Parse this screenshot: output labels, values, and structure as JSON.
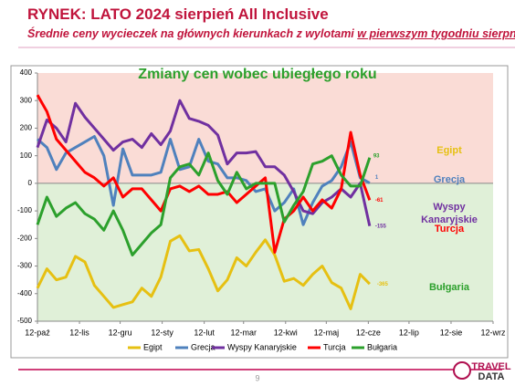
{
  "header": {
    "title": "RYNEK: LATO 2024 sierpień All Inclusive",
    "subtitle_main": "Średnie ceny wycieczek na głównych kierunkach z wylotami ",
    "subtitle_underlined": "w pierwszym tygodniu sierpnia"
  },
  "chart_data": {
    "type": "line",
    "title": "Zmiany cen wobec ubiegłego roku",
    "x": [
      0,
      7,
      14,
      21,
      28,
      35,
      42,
      49,
      56,
      63,
      70,
      77,
      84,
      91,
      98,
      105,
      112,
      119,
      126,
      133,
      140,
      147,
      154,
      161,
      168,
      175,
      182,
      189,
      196,
      203,
      210,
      217,
      224,
      231,
      238,
      245
    ],
    "xlim": [
      0,
      336
    ],
    "xticks": [
      {
        "value": 0,
        "label": "12-paź"
      },
      {
        "value": 31,
        "label": "12-lis"
      },
      {
        "value": 61,
        "label": "12-gru"
      },
      {
        "value": 92,
        "label": "12-sty"
      },
      {
        "value": 123,
        "label": "12-lut"
      },
      {
        "value": 152,
        "label": "12-mar"
      },
      {
        "value": 183,
        "label": "12-kwi"
      },
      {
        "value": 213,
        "label": "12-maj"
      },
      {
        "value": 244,
        "label": "12-cze"
      },
      {
        "value": 274,
        "label": "12-lip"
      },
      {
        "value": 305,
        "label": "12-sie"
      },
      {
        "value": 336,
        "label": "12-wrz"
      }
    ],
    "ylim": [
      -500,
      400
    ],
    "yticks": [
      -500,
      -400,
      -300,
      -200,
      -100,
      0,
      100,
      200,
      300,
      400
    ],
    "series": [
      {
        "name": "Egipt",
        "color": "#e6c012",
        "values": [
          -380,
          -310,
          -350,
          -340,
          -265,
          -285,
          -370,
          -410,
          -450,
          -440,
          -430,
          -380,
          -410,
          -340,
          -210,
          -190,
          -245,
          -240,
          -310,
          -390,
          -350,
          -270,
          -300,
          -250,
          -205,
          -260,
          -355,
          -345,
          -370,
          -330,
          -300,
          -360,
          -380,
          -455,
          -330,
          -365
        ]
      },
      {
        "name": "Grecja",
        "color": "#4f81bd",
        "values": [
          160,
          130,
          50,
          110,
          130,
          150,
          170,
          100,
          -80,
          125,
          30,
          30,
          30,
          40,
          160,
          50,
          60,
          160,
          80,
          70,
          20,
          20,
          10,
          -30,
          -20,
          -100,
          -70,
          -20,
          -150,
          -70,
          -10,
          10,
          60,
          150,
          20,
          1
        ]
      },
      {
        "name": "Wyspy Kanaryjskie",
        "color": "#7030a0",
        "values": [
          130,
          230,
          200,
          150,
          290,
          240,
          200,
          160,
          120,
          150,
          160,
          130,
          180,
          140,
          190,
          300,
          235,
          225,
          210,
          175,
          70,
          110,
          110,
          115,
          60,
          60,
          30,
          -30,
          -100,
          -110,
          -70,
          -50,
          -20,
          -50,
          0,
          -155
        ]
      },
      {
        "name": "Turcja",
        "color": "#ff0000",
        "values": [
          320,
          260,
          160,
          120,
          80,
          40,
          20,
          -10,
          20,
          -50,
          -20,
          -20,
          -60,
          -100,
          -20,
          -10,
          -30,
          -10,
          -40,
          -40,
          -30,
          -70,
          -40,
          -10,
          20,
          -250,
          -130,
          -100,
          -50,
          -100,
          -60,
          -90,
          -20,
          185,
          30,
          -61
        ]
      },
      {
        "name": "Bułgaria",
        "color": "#2ca02c",
        "values": [
          -150,
          -50,
          -120,
          -90,
          -70,
          -110,
          -130,
          -170,
          -100,
          -170,
          -260,
          -220,
          -180,
          -150,
          20,
          60,
          70,
          30,
          110,
          10,
          -40,
          40,
          -20,
          0,
          0,
          0,
          -140,
          -80,
          -30,
          70,
          80,
          100,
          30,
          -10,
          -10,
          93
        ]
      }
    ]
  },
  "footer": {
    "page": "9",
    "logo_top": "TRAVEL",
    "logo_bottom": "DATA"
  }
}
